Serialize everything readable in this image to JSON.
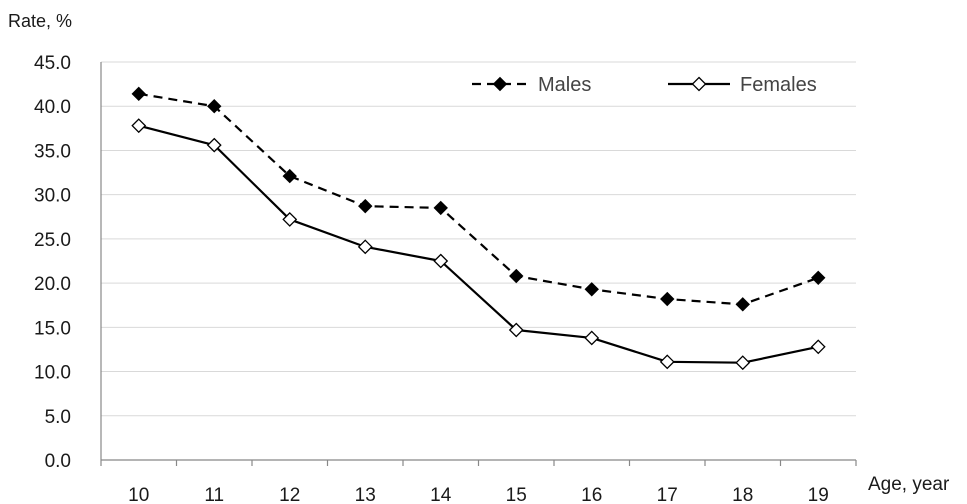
{
  "chart_data": {
    "type": "line",
    "title": "",
    "ylabel": "Rate, %",
    "xlabel": "Age, year",
    "categories": [
      "10",
      "11",
      "12",
      "13",
      "14",
      "15",
      "16",
      "17",
      "18",
      "19"
    ],
    "ylim": [
      0,
      45
    ],
    "yticks": [
      "0.0",
      "5.0",
      "10.0",
      "15.0",
      "20.0",
      "25.0",
      "30.0",
      "35.0",
      "40.0",
      "45.0"
    ],
    "grid": true,
    "legend_position": "top-right",
    "series": [
      {
        "name": "Males",
        "values": [
          41.4,
          40.0,
          32.1,
          28.7,
          28.5,
          20.8,
          19.3,
          18.2,
          17.6,
          20.6
        ],
        "style": "dashed",
        "marker": "filled-diamond",
        "color": "#000000"
      },
      {
        "name": "Females",
        "values": [
          37.8,
          35.6,
          27.2,
          24.1,
          22.5,
          14.7,
          13.8,
          11.1,
          11.0,
          12.8
        ],
        "style": "solid",
        "marker": "open-diamond",
        "color": "#000000"
      }
    ]
  }
}
